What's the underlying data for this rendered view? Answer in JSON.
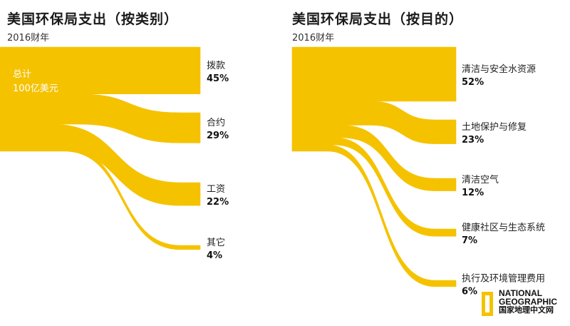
{
  "panels": [
    {
      "title": "美国环保局支出（按类别）",
      "subtitle": "2016财年",
      "total_line1": "总计",
      "total_line2": "100亿美元"
    },
    {
      "title": "美国环保局支出（按目的）",
      "subtitle": "2016财年"
    }
  ],
  "chart_data": [
    {
      "type": "sankey",
      "title": "美国环保局支出（按类别）",
      "subtitle": "2016财年",
      "total_label": "总计 100亿美元",
      "categories": [
        "拨款",
        "合约",
        "工资",
        "其它"
      ],
      "values": [
        45,
        29,
        22,
        4
      ],
      "value_labels": [
        "45%",
        "29%",
        "22%",
        "4%"
      ],
      "unit": "%"
    },
    {
      "type": "sankey",
      "title": "美国环保局支出（按目的）",
      "subtitle": "2016财年",
      "categories": [
        "清洁与安全水资源",
        "土地保护与修复",
        "清洁空气",
        "健康社区与生态系统",
        "执行及环境管理费用"
      ],
      "values": [
        52,
        23,
        12,
        7,
        6
      ],
      "value_labels": [
        "52%",
        "23%",
        "12%",
        "7%",
        "6%"
      ],
      "unit": "%"
    }
  ],
  "colors": {
    "flow": "#f5c200",
    "text": "#222222"
  },
  "logo": {
    "line1": "NATIONAL",
    "line2": "GEOGRAPHIC",
    "line3": "国家地理中文网"
  }
}
